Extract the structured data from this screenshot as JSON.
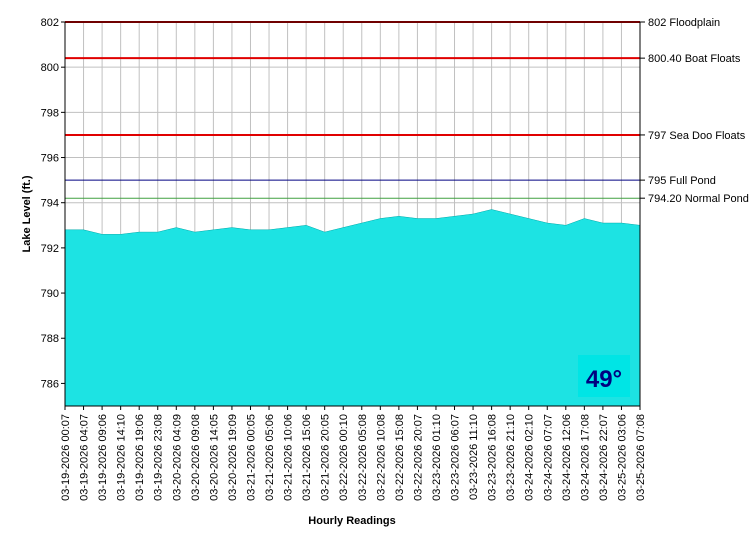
{
  "chart_data": {
    "type": "area",
    "y_label": "Lake Level (ft.)",
    "x_label": "Hourly Readings",
    "categories": [
      "03-19-2026 00:07",
      "03-19-2026 04:07",
      "03-19-2026 09:06",
      "03-19-2026 14:10",
      "03-19-2026 19:06",
      "03-19-2026 23:08",
      "03-20-2026 04:09",
      "03-20-2026 09:08",
      "03-20-2026 14:05",
      "03-20-2026 19:09",
      "03-21-2026 00:05",
      "03-21-2026 05:06",
      "03-21-2026 10:06",
      "03-21-2026 15:06",
      "03-21-2026 20:05",
      "03-22-2026 00:10",
      "03-22-2026 05:08",
      "03-22-2026 10:08",
      "03-22-2026 15:08",
      "03-22-2026 20:07",
      "03-23-2026 01:10",
      "03-23-2026 06:07",
      "03-23-2026 11:10",
      "03-23-2026 16:08",
      "03-23-2026 21:10",
      "03-24-2026 02:10",
      "03-24-2026 07:07",
      "03-24-2026 12:06",
      "03-24-2026 17:08",
      "03-24-2026 22:07",
      "03-25-2026 03:06",
      "03-25-2026 07:08"
    ],
    "values": [
      792.8,
      792.8,
      792.6,
      792.6,
      792.7,
      792.7,
      792.9,
      792.7,
      792.8,
      792.9,
      792.8,
      792.8,
      792.9,
      793.0,
      792.7,
      792.9,
      793.1,
      793.3,
      793.4,
      793.3,
      793.3,
      793.4,
      793.5,
      793.7,
      793.5,
      793.3,
      793.1,
      793.0,
      793.3,
      793.1,
      793.1,
      793.0
    ],
    "color": "#1de3e3",
    "ylim": [
      785,
      802
    ],
    "yticks": [
      786,
      788,
      790,
      792,
      794,
      796,
      798,
      800,
      802
    ],
    "grid": true,
    "reference_lines": [
      {
        "value": 802,
        "label": "802 Floodplain",
        "color": "#e00000"
      },
      {
        "value": 800.4,
        "label": "800.40 Boat Floats",
        "color": "#e00000"
      },
      {
        "value": 797,
        "label": "797 Sea Doo Floats",
        "color": "#e00000"
      },
      {
        "value": 795,
        "label": "795 Full Pond",
        "color": "#000080"
      },
      {
        "value": 794.2,
        "label": "794.20 Normal Pond",
        "color": "#40a040"
      }
    ],
    "annotation": "49°"
  }
}
